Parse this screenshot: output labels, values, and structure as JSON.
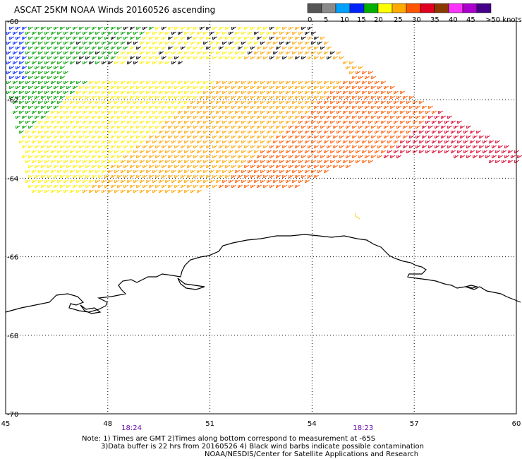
{
  "title": "ASCAT 25KM NOAA Winds 20160526 ascending",
  "legend": {
    "colors": [
      "#555555",
      "#8a8a8a",
      "#00a0ff",
      "#0022ff",
      "#00b000",
      "#ffff00",
      "#ffaa00",
      "#ff5500",
      "#e00020",
      "#8a3a00",
      "#ff33ff",
      "#aa00cc",
      "#440088"
    ],
    "labels": [
      "0",
      "5",
      "10",
      "15",
      "20",
      "25",
      "30",
      "35",
      "40",
      "45",
      ">50 knots"
    ]
  },
  "lon_labels": [
    "45",
    "48",
    "51",
    "54",
    "57",
    "60"
  ],
  "lat_labels": [
    "-60",
    "-62",
    "-64",
    "-66",
    "-68",
    "-70"
  ],
  "time_labels": [
    {
      "text": "18:24",
      "lon": 48.7
    },
    {
      "text": "18:23",
      "lon": 55.5
    }
  ],
  "notes": [
    "Note: 1) Times are GMT 2)Times along bottom correspond to measurement at -65S",
    "3)Data buffer is 22 hrs from 20160526 4) Black wind barbs indicate possible contamination",
    "NOAA/NESDIS/Center for Satellite Applications and Research"
  ],
  "map_extent": {
    "lon_min": 45,
    "lon_max": 60,
    "lat_min": -70,
    "lat_max": -60
  },
  "colors": {
    "grid": "#000000",
    "coast": "#000000",
    "time": "#6a0dad"
  },
  "swath": {
    "description_key": "wind-barbs",
    "speed_bands_knots": [
      15,
      20,
      25,
      30,
      35
    ]
  }
}
